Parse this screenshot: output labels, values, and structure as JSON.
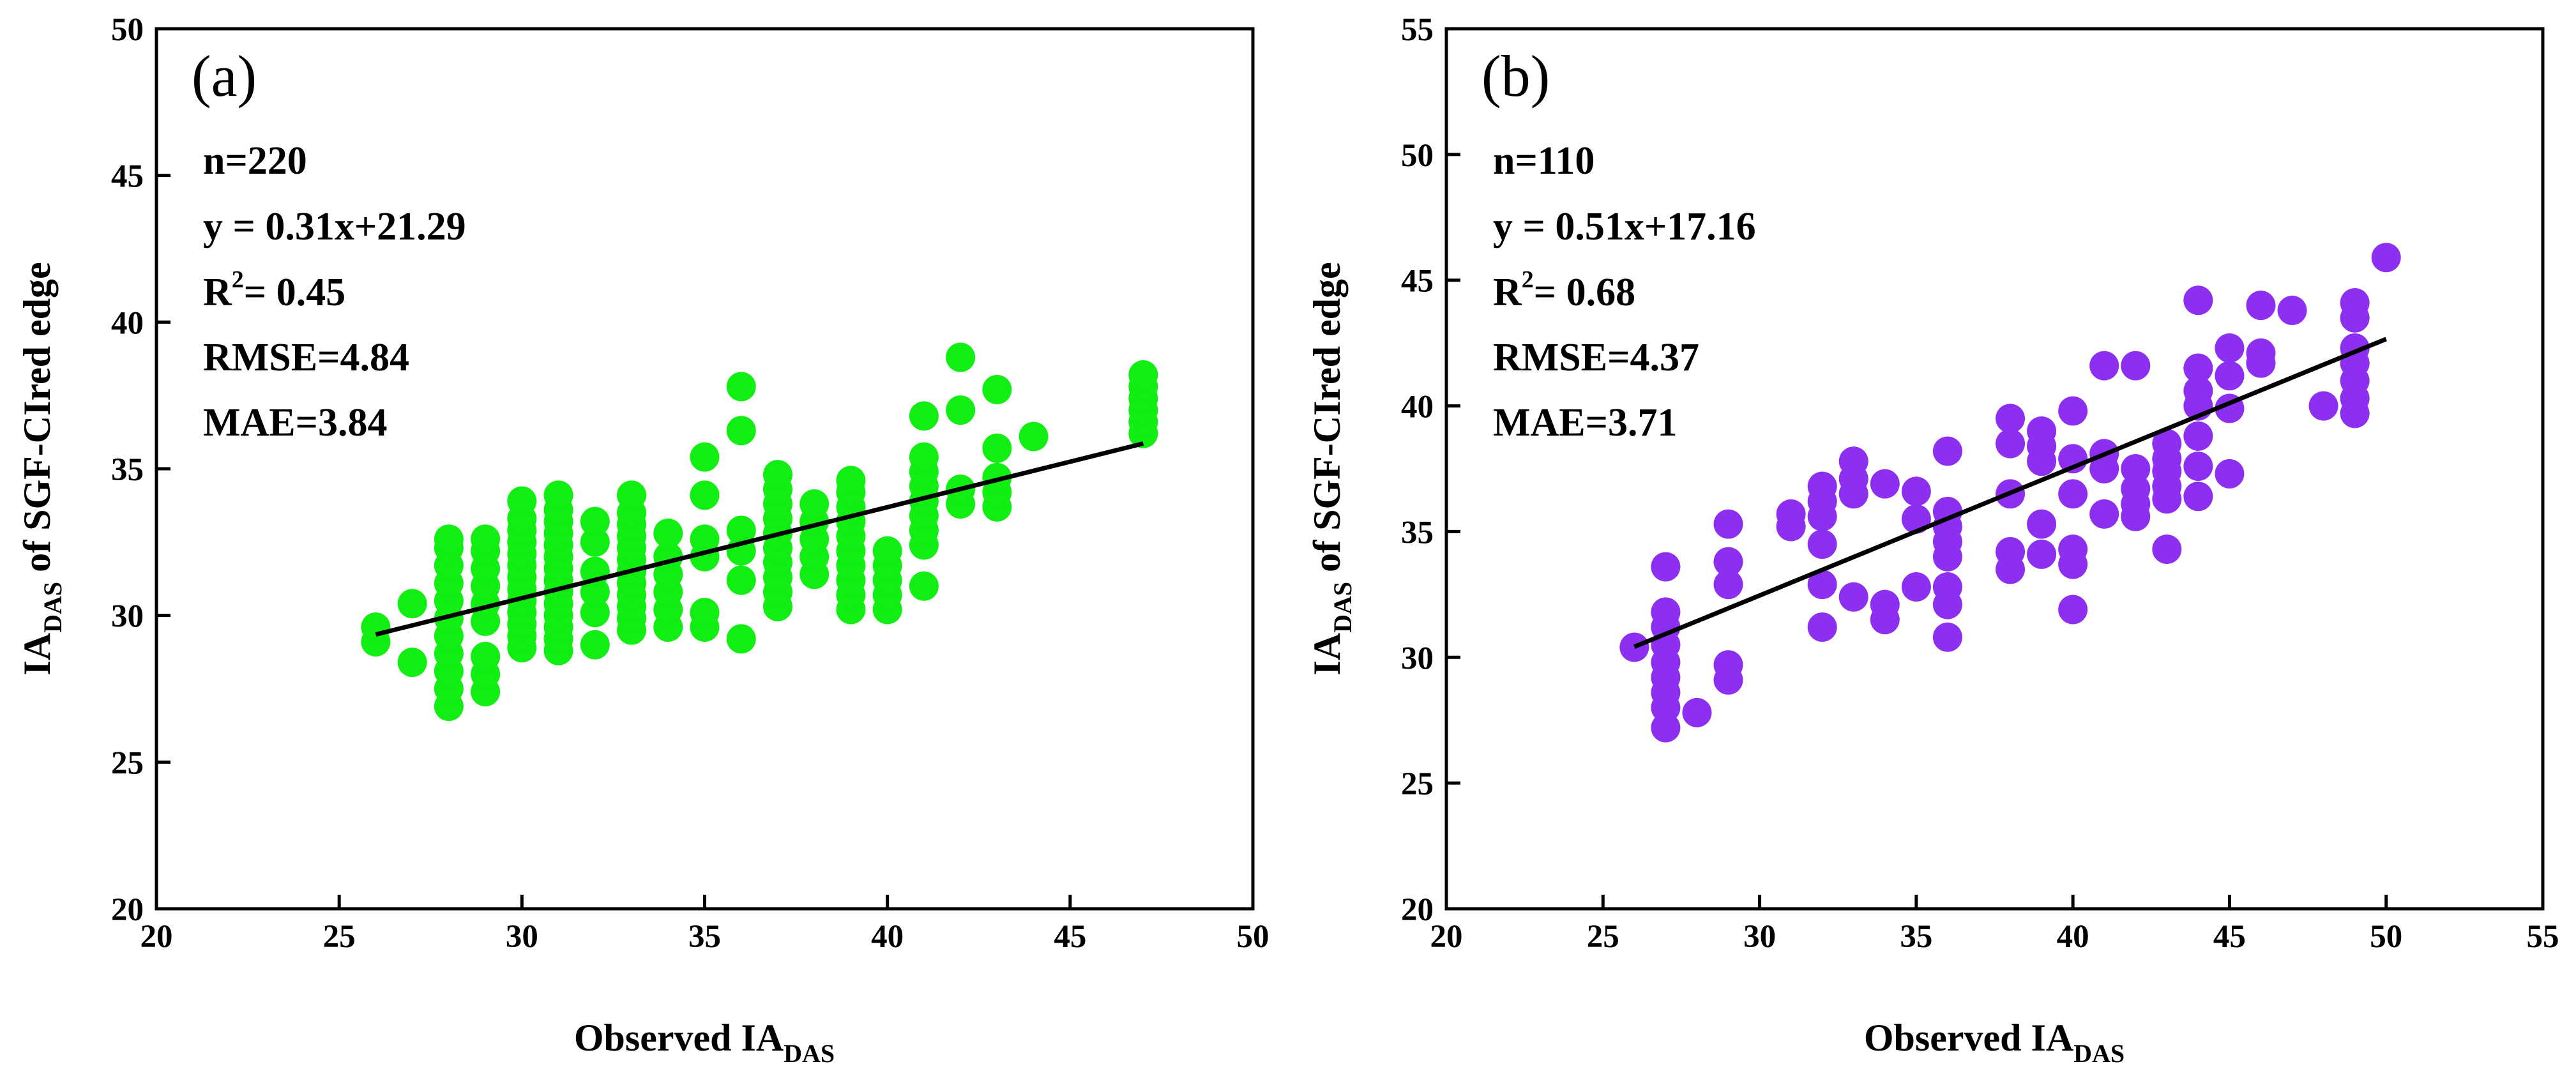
{
  "chart_data": [
    {
      "type": "scatter",
      "panel_label": "(a)",
      "xlabel": {
        "main": "Observed IA",
        "sub": "DAS"
      },
      "ylabel": {
        "main": "IA",
        "sub": "DAS",
        "rest": " of SGF-CIred edge"
      },
      "xlim": [
        20,
        50
      ],
      "ylim": [
        20,
        50
      ],
      "x_ticks": [
        20,
        25,
        30,
        35,
        40,
        45,
        50
      ],
      "y_ticks": [
        20,
        25,
        30,
        35,
        40,
        45,
        50
      ],
      "marker_color": "#11ee11",
      "fit_line_color": "#000000",
      "stats": {
        "n": "n=220",
        "equation": "y = 0.31x+21.29",
        "r2_prefix": "R",
        "r2_exp": "2",
        "r2_value": "= 0.45",
        "rmse": "RMSE=4.84",
        "mae": "MAE=3.84"
      },
      "fit": {
        "slope": 0.31,
        "intercept": 21.29,
        "x_range": [
          26,
          47
        ]
      },
      "points": [
        {
          "x": 26,
          "y": [
            29.1,
            29.6
          ]
        },
        {
          "x": 27,
          "y": [
            28.4,
            30.4
          ]
        },
        {
          "x": 28,
          "y": [
            26.9,
            27.5,
            28.1,
            28.7,
            29.3,
            29.9,
            30.5,
            31.1,
            31.7,
            32.3,
            32.6
          ]
        },
        {
          "x": 29,
          "y": [
            27.4,
            28.0,
            28.6,
            29.8,
            30.4,
            31.0,
            31.6,
            32.2,
            32.6
          ]
        },
        {
          "x": 30,
          "y": [
            28.9,
            29.3,
            29.7,
            30.1,
            30.5,
            30.9,
            31.3,
            31.7,
            32.1,
            32.5,
            32.9,
            33.3,
            33.9
          ]
        },
        {
          "x": 31,
          "y": [
            28.8,
            29.2,
            29.6,
            30.0,
            30.4,
            30.8,
            31.2,
            31.6,
            32.0,
            32.4,
            32.8,
            33.2,
            33.6,
            34.1
          ]
        },
        {
          "x": 32,
          "y": [
            29.0,
            30.1,
            30.8,
            31.5,
            32.5,
            33.2
          ]
        },
        {
          "x": 33,
          "y": [
            29.5,
            29.9,
            30.3,
            30.7,
            31.1,
            31.5,
            31.9,
            32.3,
            32.7,
            33.1,
            33.5,
            34.1
          ]
        },
        {
          "x": 34,
          "y": [
            29.6,
            30.2,
            30.8,
            31.4,
            32.0,
            32.8
          ]
        },
        {
          "x": 35,
          "y": [
            29.6,
            30.1,
            32.0,
            32.6,
            34.1,
            35.4
          ]
        },
        {
          "x": 36,
          "y": [
            29.2,
            31.2,
            32.2,
            32.9,
            36.3,
            37.8
          ]
        },
        {
          "x": 37,
          "y": [
            30.3,
            30.8,
            31.3,
            31.8,
            32.3,
            32.8,
            33.3,
            33.8,
            34.3,
            34.8
          ]
        },
        {
          "x": 38,
          "y": [
            31.4,
            32.0,
            32.6,
            33.2,
            33.8
          ]
        },
        {
          "x": 39,
          "y": [
            30.2,
            30.7,
            31.2,
            31.7,
            32.2,
            32.7,
            33.2,
            33.7,
            34.2,
            34.6
          ]
        },
        {
          "x": 40,
          "y": [
            30.2,
            30.7,
            31.2,
            31.7,
            32.2
          ]
        },
        {
          "x": 41,
          "y": [
            31.0,
            32.4,
            32.9,
            33.4,
            33.9,
            34.4,
            34.9,
            35.4,
            36.8
          ]
        },
        {
          "x": 42,
          "y": [
            33.8,
            34.3,
            37.0,
            38.8
          ]
        },
        {
          "x": 43,
          "y": [
            33.7,
            34.2,
            34.7,
            35.7,
            37.7
          ]
        },
        {
          "x": 44,
          "y": [
            36.1
          ]
        },
        {
          "x": 47,
          "y": [
            36.2,
            36.6,
            37.0,
            37.4,
            37.8,
            38.2
          ]
        }
      ]
    },
    {
      "type": "scatter",
      "panel_label": "(b)",
      "xlabel": {
        "main": "Observed IA",
        "sub": "DAS"
      },
      "ylabel": {
        "main": "IA",
        "sub": "DAS",
        "rest": " of SGF-CIred edge"
      },
      "xlim": [
        20,
        55
      ],
      "ylim": [
        20,
        55
      ],
      "x_ticks": [
        20,
        25,
        30,
        35,
        40,
        45,
        50,
        55
      ],
      "y_ticks": [
        20,
        25,
        30,
        35,
        40,
        45,
        50,
        55
      ],
      "marker_color": "#8c2ff0",
      "fit_line_color": "#000000",
      "stats": {
        "n": "n=110",
        "equation": "y = 0.51x+17.16",
        "r2_prefix": "R",
        "r2_exp": "2",
        "r2_value": "= 0.68",
        "rmse": "RMSE=4.37",
        "mae": "MAE=3.71"
      },
      "fit": {
        "slope": 0.51,
        "intercept": 17.16,
        "x_range": [
          26,
          50
        ]
      },
      "points": [
        {
          "x": 26,
          "y": [
            30.4
          ]
        },
        {
          "x": 27,
          "y": [
            27.2,
            28.0,
            28.6,
            29.2,
            29.8,
            30.5,
            31.2,
            31.8,
            33.6
          ]
        },
        {
          "x": 28,
          "y": [
            27.8
          ]
        },
        {
          "x": 29,
          "y": [
            29.1,
            29.7,
            32.9,
            33.8,
            35.3
          ]
        },
        {
          "x": 31,
          "y": [
            35.2,
            35.7
          ]
        },
        {
          "x": 32,
          "y": [
            31.2,
            32.9,
            34.5,
            35.6,
            36.2,
            36.8
          ]
        },
        {
          "x": 33,
          "y": [
            32.4,
            36.5,
            37.1,
            37.8
          ]
        },
        {
          "x": 34,
          "y": [
            31.5,
            32.1,
            36.9
          ]
        },
        {
          "x": 35,
          "y": [
            32.8,
            35.5,
            36.6
          ]
        },
        {
          "x": 36,
          "y": [
            30.8,
            32.1,
            32.8,
            34.0,
            34.6,
            35.2,
            35.8,
            38.2
          ]
        },
        {
          "x": 38,
          "y": [
            33.5,
            34.2,
            36.5,
            38.5,
            39.5
          ]
        },
        {
          "x": 39,
          "y": [
            34.1,
            35.3,
            37.8,
            38.4,
            39.0
          ]
        },
        {
          "x": 40,
          "y": [
            31.9,
            33.7,
            34.3,
            36.5,
            37.9,
            39.8
          ]
        },
        {
          "x": 41,
          "y": [
            35.7,
            37.5,
            38.1,
            41.6
          ]
        },
        {
          "x": 42,
          "y": [
            35.6,
            36.1,
            36.7,
            37.5,
            41.6
          ]
        },
        {
          "x": 43,
          "y": [
            34.3,
            36.3,
            36.8,
            37.4,
            37.9,
            38.5
          ]
        },
        {
          "x": 44,
          "y": [
            36.4,
            37.6,
            38.8,
            40.0,
            40.6,
            41.5,
            44.2
          ]
        },
        {
          "x": 45,
          "y": [
            37.3,
            39.9,
            41.2,
            42.3
          ]
        },
        {
          "x": 46,
          "y": [
            41.7,
            42.1,
            44.0
          ]
        },
        {
          "x": 47,
          "y": [
            43.8
          ]
        },
        {
          "x": 48,
          "y": [
            40.0
          ]
        },
        {
          "x": 49,
          "y": [
            39.7,
            40.3,
            41.0,
            41.7,
            42.3,
            43.5,
            44.1
          ]
        },
        {
          "x": 50,
          "y": [
            45.9
          ]
        }
      ]
    }
  ]
}
